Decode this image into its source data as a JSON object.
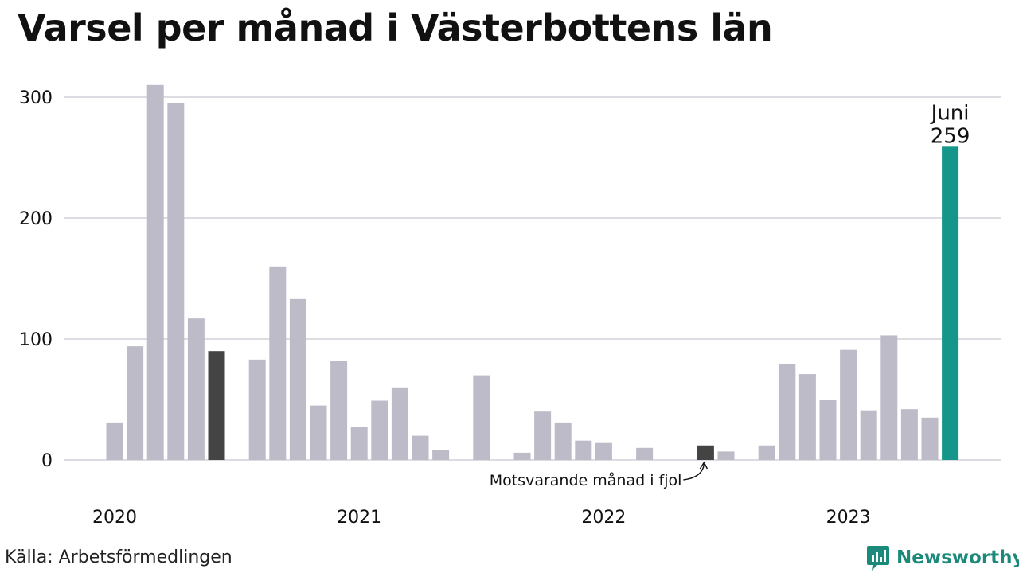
{
  "title": "Varsel per månad i Västerbottens län",
  "source": "Källa: Arbetsförmedlingen",
  "brand": "Newsworthy",
  "chart_data": {
    "type": "bar",
    "title": "Varsel per månad i Västerbottens län",
    "xlabel": "",
    "ylabel": "",
    "ylim": [
      0,
      320
    ],
    "yticks": [
      0,
      100,
      200,
      300
    ],
    "year_labels": [
      {
        "label": "2020",
        "month_index": 0
      },
      {
        "label": "2021",
        "month_index": 12
      },
      {
        "label": "2022",
        "month_index": 24
      },
      {
        "label": "2023",
        "month_index": 36
      }
    ],
    "months": [
      "2020-01",
      "2020-02",
      "2020-03",
      "2020-04",
      "2020-05",
      "2020-06",
      "2020-07",
      "2020-08",
      "2020-09",
      "2020-10",
      "2020-11",
      "2020-12",
      "2021-01",
      "2021-02",
      "2021-03",
      "2021-04",
      "2021-05",
      "2021-06",
      "2021-07",
      "2021-08",
      "2021-09",
      "2021-10",
      "2021-11",
      "2021-12",
      "2022-01",
      "2022-02",
      "2022-03",
      "2022-04",
      "2022-05",
      "2022-06",
      "2022-07",
      "2022-08",
      "2022-09",
      "2022-10",
      "2022-11",
      "2022-12",
      "2023-01",
      "2023-02",
      "2023-03",
      "2023-04",
      "2023-05",
      "2023-06"
    ],
    "values": [
      31,
      94,
      310,
      295,
      117,
      90,
      0,
      83,
      160,
      133,
      45,
      82,
      27,
      49,
      60,
      20,
      8,
      0,
      70,
      0,
      6,
      40,
      31,
      16,
      14,
      0,
      10,
      0,
      0,
      12,
      7,
      0,
      12,
      79,
      71,
      50,
      91,
      41,
      103,
      42,
      35,
      259
    ],
    "highlight_index": 41,
    "highlight_label": "Juni",
    "highlight_value_label": "259",
    "comparison_indices": [
      5,
      29
    ],
    "annotation": "Motsvarande månad i fjol",
    "colors": {
      "bar": "#bdbbc8",
      "comparison": "#444444",
      "highlight": "#16968a",
      "grid": "#dcdce2",
      "text": "#111111"
    },
    "grid": true
  }
}
